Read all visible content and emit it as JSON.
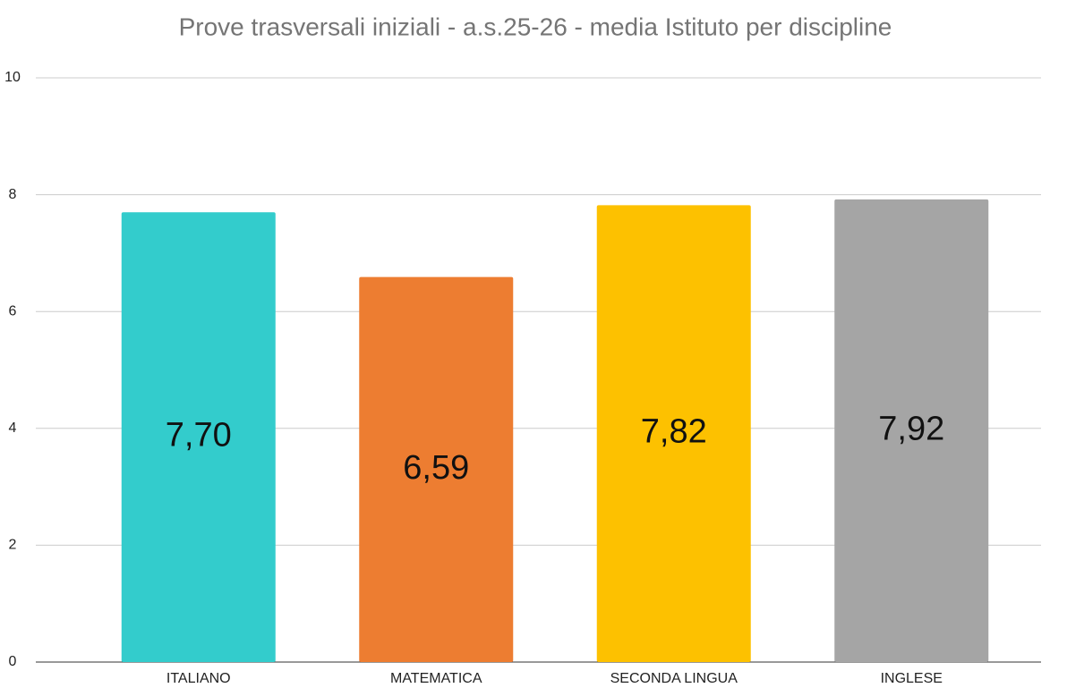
{
  "chart_data": {
    "type": "bar",
    "title": "Prove trasversali iniziali - a.s.25-26 - media Istituto per discipline",
    "categories": [
      "ITALIANO",
      "MATEMATICA",
      "SECONDA LINGUA",
      "INGLESE"
    ],
    "values": [
      7.7,
      6.59,
      7.82,
      7.92
    ],
    "value_labels": [
      "7,70",
      "6,59",
      "7,82",
      "7,92"
    ],
    "colors": [
      "#33cccc",
      "#ed7d31",
      "#fdc100",
      "#a5a5a5"
    ],
    "ylim": [
      0,
      10
    ],
    "yticks": [
      0,
      2,
      4,
      6,
      8,
      10
    ],
    "grid": true
  }
}
